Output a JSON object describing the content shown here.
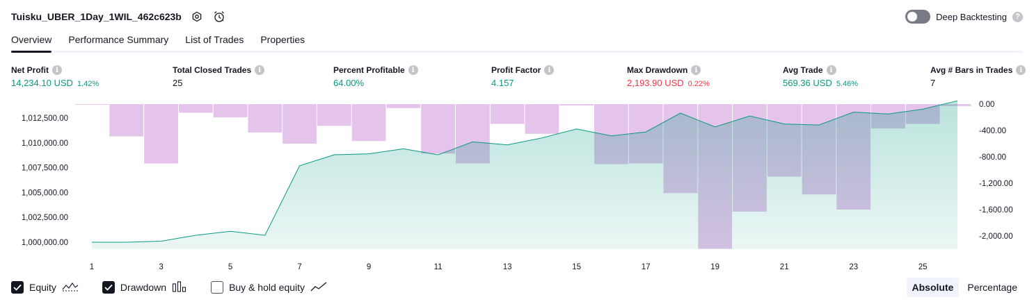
{
  "header": {
    "strategy_name": "Tuisku_UBER_1Day_1WIL_462c623b",
    "deep_backtesting_label": "Deep Backtesting",
    "help_glyph": "?"
  },
  "tabs": [
    {
      "label": "Overview",
      "active": true
    },
    {
      "label": "Performance Summary",
      "active": false
    },
    {
      "label": "List of Trades",
      "active": false
    },
    {
      "label": "Properties",
      "active": false
    }
  ],
  "stats": [
    {
      "label": "Net Profit",
      "value": "14,234.10 USD",
      "pct": "1.42%",
      "tone": "pos"
    },
    {
      "label": "Total Closed Trades",
      "value": "25",
      "pct": "",
      "tone": "neu"
    },
    {
      "label": "Percent Profitable",
      "value": "64.00%",
      "pct": "",
      "tone": "pos"
    },
    {
      "label": "Profit Factor",
      "value": "4.157",
      "pct": "",
      "tone": "pos"
    },
    {
      "label": "Max Drawdown",
      "value": "2,193.90 USD",
      "pct": "0.22%",
      "tone": "neg"
    },
    {
      "label": "Avg Trade",
      "value": "569.36 USD",
      "pct": "5.46%",
      "tone": "pos"
    },
    {
      "label": "Avg # Bars in Trades",
      "value": "7",
      "pct": "",
      "tone": "neu"
    }
  ],
  "info_glyph": "i",
  "chart_data": {
    "type": "area",
    "x_ticks": [
      "1",
      "3",
      "5",
      "7",
      "9",
      "11",
      "13",
      "15",
      "17",
      "19",
      "21",
      "23",
      "25"
    ],
    "left_axis": {
      "ticks": [
        "1,000,000.00",
        "1,002,500.00",
        "1,005,000.00",
        "1,007,500.00",
        "1,010,000.00",
        "1,012,500.00"
      ],
      "range": [
        999300,
        1013900
      ]
    },
    "right_axis": {
      "ticks": [
        "0.00",
        "-400.00",
        "-800.00",
        "-1,200.00",
        "-1,600.00",
        "-2,000.00"
      ],
      "range": [
        -2200,
        0
      ]
    },
    "series": [
      {
        "name": "Equity",
        "color": "#089981",
        "x": [
          1,
          2,
          3,
          4,
          5,
          6,
          7,
          8,
          9,
          10,
          11,
          12,
          13,
          14,
          15,
          16,
          17,
          18,
          19,
          20,
          21,
          22,
          23,
          24,
          25,
          26
        ],
        "values": [
          1000000,
          1000000,
          1000100,
          1000700,
          1001100,
          1000700,
          1007700,
          1008800,
          1008900,
          1009400,
          1008800,
          1010100,
          1009800,
          1010500,
          1011400,
          1010700,
          1011100,
          1013000,
          1011600,
          1012700,
          1011900,
          1011800,
          1013100,
          1012900,
          1013400,
          1014234
        ]
      },
      {
        "name": "Drawdown",
        "color": "#ce93d8",
        "x": [
          1,
          2,
          3,
          4,
          5,
          6,
          7,
          8,
          9,
          10,
          11,
          12,
          13,
          14,
          15,
          16,
          17,
          18,
          19,
          20,
          21,
          22,
          23,
          24,
          25,
          26
        ],
        "values": [
          -10,
          -490,
          -900,
          -130,
          -200,
          -430,
          -600,
          -330,
          -560,
          -60,
          -750,
          -900,
          -300,
          -450,
          -20,
          -910,
          -900,
          -1350,
          -2193.9,
          -1630,
          -1100,
          -1370,
          -1600,
          -370,
          -300,
          -30
        ]
      }
    ]
  },
  "legend": [
    {
      "label": "Equity",
      "checked": true,
      "icon": "equity-line-icon"
    },
    {
      "label": "Drawdown",
      "checked": true,
      "icon": "drawdown-bars-icon"
    },
    {
      "label": "Buy & hold equity",
      "checked": false,
      "icon": "buy-hold-line-icon"
    }
  ],
  "scale_toggle": [
    {
      "label": "Absolute",
      "active": true
    },
    {
      "label": "Percentage",
      "active": false
    }
  ]
}
